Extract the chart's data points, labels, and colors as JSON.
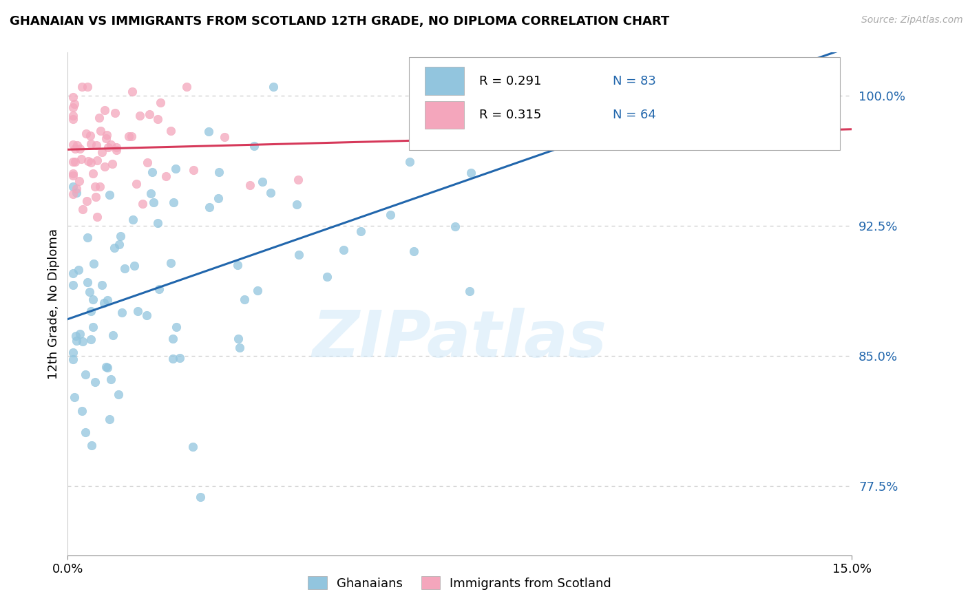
{
  "title": "GHANAIAN VS IMMIGRANTS FROM SCOTLAND 12TH GRADE, NO DIPLOMA CORRELATION CHART",
  "source": "Source: ZipAtlas.com",
  "ylabel": "12th Grade, No Diploma",
  "yticks_labels": [
    "77.5%",
    "85.0%",
    "92.5%",
    "100.0%"
  ],
  "yticks_vals": [
    0.775,
    0.85,
    0.925,
    1.0
  ],
  "xtick_left": "0.0%",
  "xtick_right": "15.0%",
  "xmin": 0.0,
  "xmax": 0.15,
  "ymin": 0.735,
  "ymax": 1.025,
  "watermark": "ZIPatlas",
  "legend_r1": "R = 0.291",
  "legend_n1": "N = 83",
  "legend_r2": "R = 0.315",
  "legend_n2": "N = 64",
  "ghanaian_label": "Ghanaians",
  "scotland_label": "Immigrants from Scotland",
  "color_blue": "#92c5de",
  "color_pink": "#f4a6bc",
  "line_blue": "#2166ac",
  "line_pink": "#d6395a",
  "text_blue": "#2166ac",
  "background": "#ffffff",
  "grid_color": "#cccccc",
  "title_fontsize": 13,
  "axis_fontsize": 13,
  "legend_fontsize": 13,
  "scatter_size": 80,
  "scatter_alpha": 0.75
}
